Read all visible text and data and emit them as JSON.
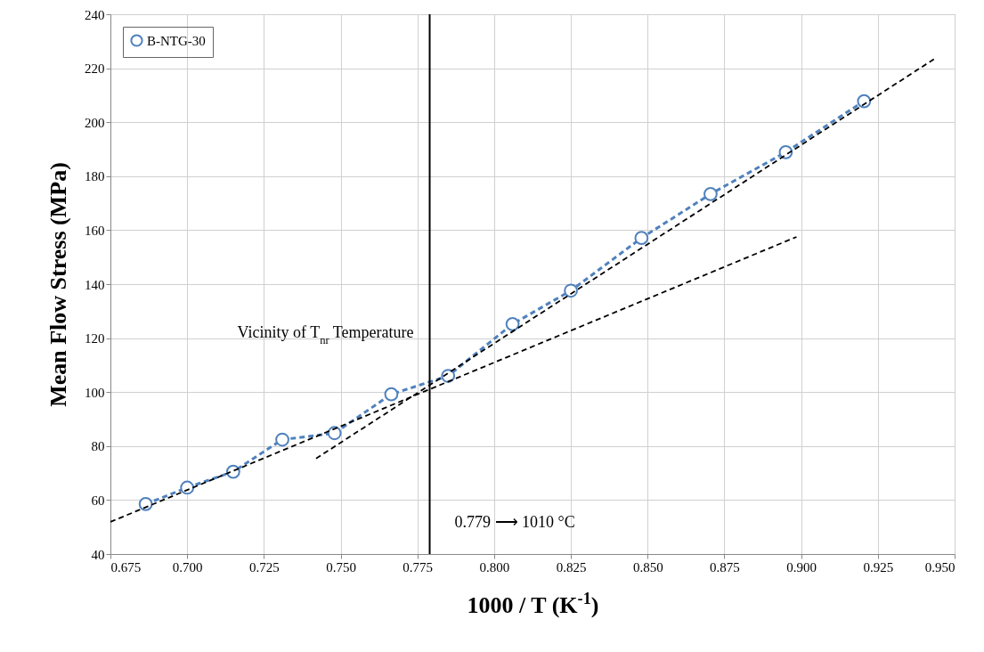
{
  "chart_data": {
    "type": "line",
    "xlabel": "1000 / T (K$^{-1}$)",
    "ylabel": "Mean Flow Stress (MPa)",
    "xlim": [
      0.675,
      0.95
    ],
    "xticks": [
      {
        "value": 0.675,
        "label": "0.675"
      },
      {
        "value": 0.7,
        "label": "0.700"
      },
      {
        "value": 0.725,
        "label": "0.725"
      },
      {
        "value": 0.75,
        "label": "0.750"
      },
      {
        "value": 0.775,
        "label": "0.775"
      },
      {
        "value": 0.8,
        "label": "0.800"
      },
      {
        "value": 0.825,
        "label": "0.825"
      },
      {
        "value": 0.85,
        "label": "0.850"
      },
      {
        "value": 0.875,
        "label": "0.875"
      },
      {
        "value": 0.9,
        "label": "0.900"
      },
      {
        "value": 0.925,
        "label": "0.925"
      },
      {
        "value": 0.95,
        "label": "0.950"
      }
    ],
    "ylim": [
      40,
      240
    ],
    "yticks": [
      40,
      60,
      80,
      100,
      120,
      140,
      160,
      180,
      200,
      220,
      240
    ],
    "grid": true,
    "legend": "top left",
    "line_style": "dashed",
    "series": [
      {
        "name": "B-NTG-30",
        "color": "#4f81bd",
        "marker": "circle",
        "x": [
          0.6865,
          0.7,
          0.715,
          0.731,
          0.748,
          0.7665,
          0.785,
          0.806,
          0.825,
          0.848,
          0.8705,
          0.895,
          0.9205
        ],
        "values": [
          58.5,
          64.6,
          70.5,
          82.4,
          84.8,
          99.2,
          106,
          125.2,
          137.6,
          157.1,
          173.4,
          188.9,
          207.8
        ]
      },
      {
        "type": "line",
        "color": "#000000",
        "marker": "none",
        "x": [
          0.675,
          0.8985
        ],
        "values": [
          51.9,
          157.5
        ]
      },
      {
        "type": "line",
        "color": "#000000",
        "marker": "none",
        "x": [
          0.742,
          0.944
        ],
        "values": [
          75.4,
          223.9
        ]
      }
    ],
    "ref_lines": [
      {
        "axis": "x",
        "value": 0.779,
        "label": "0.779 ⟶ 1010 °C",
        "color": "#000000",
        "line_style": "solid"
      }
    ],
    "annotations": [
      {
        "text": "Vicinity of T$_{nr}$ Temperature",
        "x": 0.779,
        "y": 122
      }
    ]
  }
}
